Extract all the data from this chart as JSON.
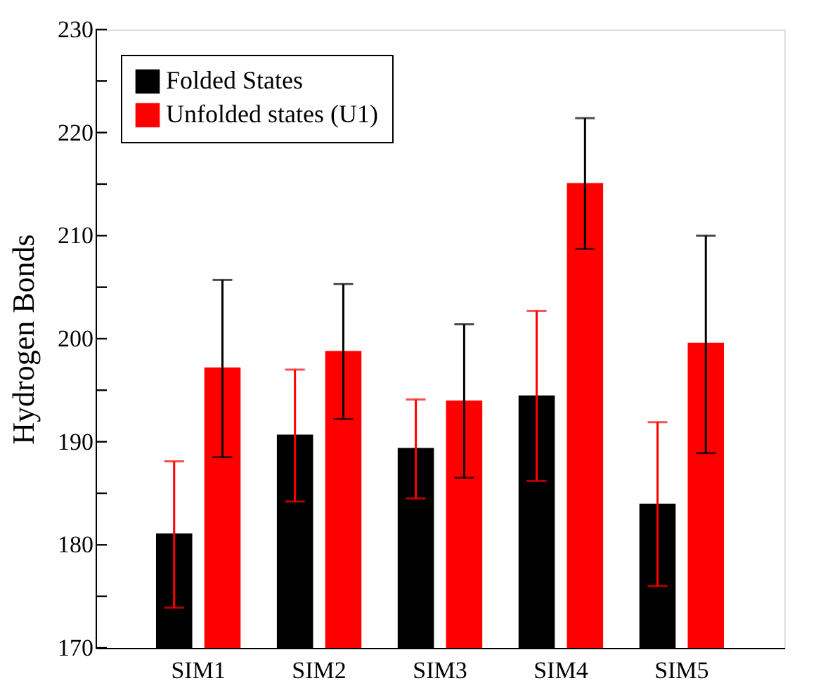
{
  "chart_data": {
    "type": "bar",
    "ylabel": "Hydrogen Bonds",
    "categories": [
      "SIM1",
      "SIM2",
      "SIM3",
      "SIM4",
      "SIM5"
    ],
    "series": [
      {
        "name": "Folded States",
        "color": "#000000",
        "values": [
          181.1,
          190.7,
          189.4,
          194.5,
          184.0
        ],
        "errors": [
          [
            173.9,
            188.1
          ],
          [
            184.2,
            197.0
          ],
          [
            184.5,
            194.1
          ],
          [
            186.2,
            202.7
          ],
          [
            176.0,
            191.9
          ]
        ]
      },
      {
        "name": "Unfolded states (U1)",
        "color": "#ff0000",
        "values": [
          197.2,
          198.8,
          194.0,
          215.1,
          199.6
        ],
        "errors": [
          [
            188.5,
            205.7
          ],
          [
            192.2,
            205.3
          ],
          [
            186.5,
            201.4
          ],
          [
            208.7,
            221.4
          ],
          [
            188.9,
            210.0
          ]
        ]
      }
    ],
    "ylim": [
      170,
      230
    ],
    "yticks": [
      170,
      {
        "value": 175,
        "label": null
      },
      180,
      {
        "value": 185,
        "label": null
      },
      190,
      {
        "value": 195,
        "label": null
      },
      200,
      {
        "value": 205,
        "label": null
      },
      210,
      {
        "value": 215,
        "label": null
      },
      220,
      {
        "value": 225,
        "label": null
      },
      230
    ],
    "legend": "top left",
    "grid": false
  }
}
